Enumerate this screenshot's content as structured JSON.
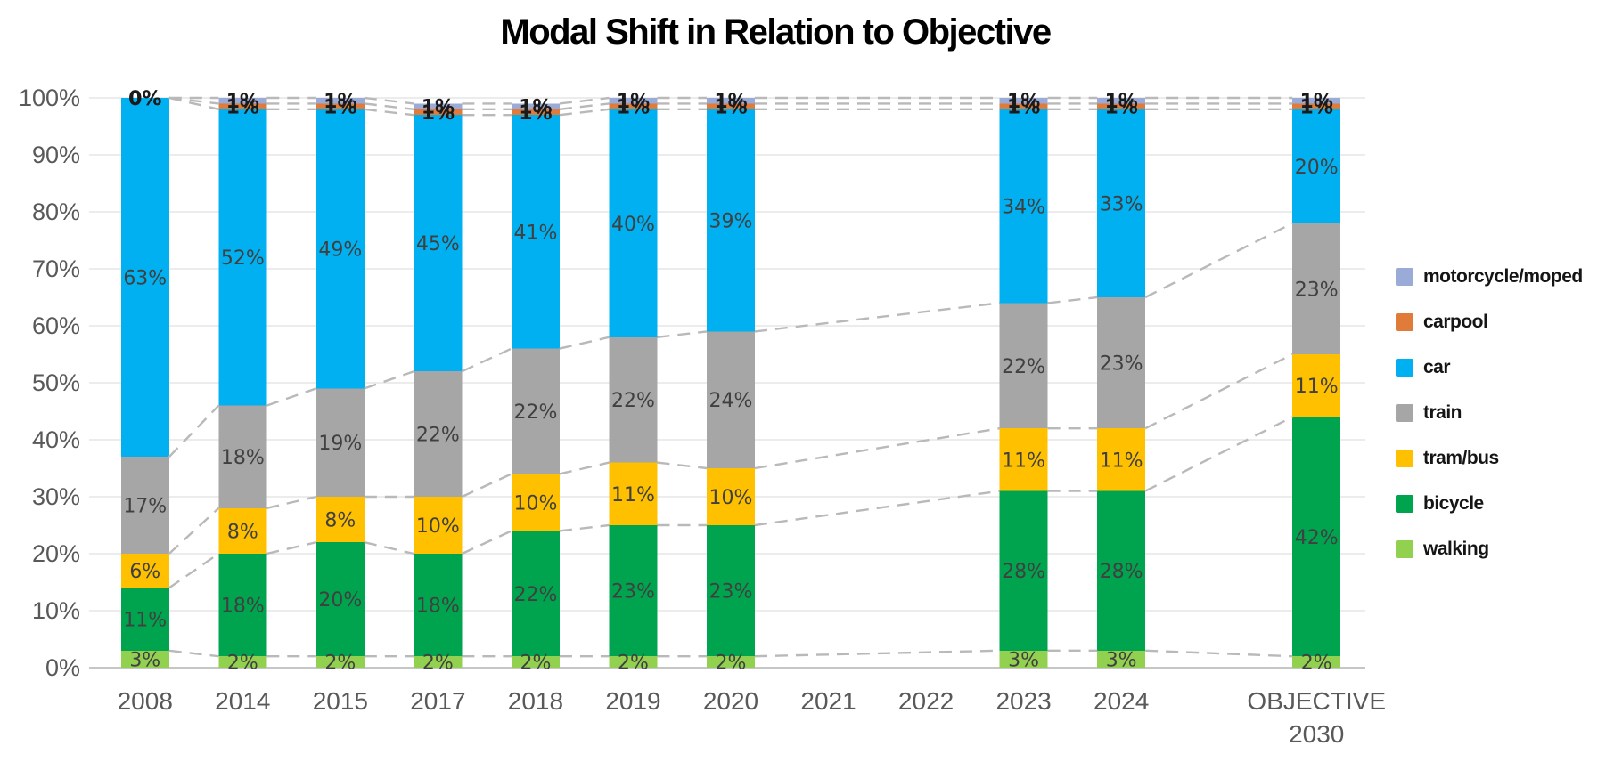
{
  "chart_data": {
    "type": "bar",
    "stacked": true,
    "title": "Modal Shift in Relation to Objective",
    "xlabel": "",
    "ylabel": "",
    "ylim": [
      0,
      100
    ],
    "grid": true,
    "legend_position": "right",
    "ytick_labels": [
      "0%",
      "10%",
      "20%",
      "30%",
      "40%",
      "50%",
      "60%",
      "70%",
      "80%",
      "90%",
      "100%"
    ],
    "categories": [
      "2008",
      "2014",
      "2015",
      "2017",
      "2018",
      "2019",
      "2020",
      "2021",
      "2022",
      "2023",
      "2024",
      "",
      "OBJECTIVE\n2030"
    ],
    "empty_categories": [
      "2021",
      "2022",
      ""
    ],
    "series_bottom_to_top": [
      {
        "name": "walking",
        "color": "#92D050",
        "label_color": "#404040",
        "label_bold": false,
        "values": [
          3,
          2,
          2,
          2,
          2,
          2,
          2,
          null,
          null,
          3,
          3,
          null,
          2
        ]
      },
      {
        "name": "bicycle",
        "color": "#00A44E",
        "label_color": "#404040",
        "label_bold": false,
        "values": [
          11,
          18,
          20,
          18,
          22,
          23,
          23,
          null,
          null,
          28,
          28,
          null,
          42
        ]
      },
      {
        "name": "tram/bus",
        "color": "#FFC000",
        "label_color": "#404040",
        "label_bold": false,
        "values": [
          6,
          8,
          8,
          10,
          10,
          11,
          10,
          null,
          null,
          11,
          11,
          null,
          11
        ]
      },
      {
        "name": "train",
        "color": "#A6A6A6",
        "label_color": "#404040",
        "label_bold": false,
        "values": [
          17,
          18,
          19,
          22,
          22,
          22,
          24,
          null,
          null,
          22,
          23,
          null,
          23
        ]
      },
      {
        "name": "car",
        "color": "#00B0F0",
        "label_color": "#404040",
        "label_bold": false,
        "values": [
          63,
          52,
          49,
          45,
          41,
          40,
          39,
          null,
          null,
          34,
          33,
          null,
          20
        ]
      },
      {
        "name": "carpool",
        "color": "#E07B39",
        "label_color": "#1A1A1A",
        "label_bold": true,
        "values": [
          0,
          1,
          1,
          1,
          1,
          1,
          1,
          null,
          null,
          1,
          1,
          null,
          1
        ]
      },
      {
        "name": "motorcycle/moped",
        "color": "#99ABD6",
        "label_color": "#1A1A1A",
        "label_bold": true,
        "values": [
          0,
          1,
          1,
          1,
          1,
          1,
          1,
          null,
          null,
          1,
          1,
          null,
          1
        ]
      }
    ],
    "legend_top_to_bottom": [
      "motorcycle/moped",
      "carpool",
      "car",
      "train",
      "tram/bus",
      "bicycle",
      "walking"
    ],
    "connector_lines": {
      "style": "dashed",
      "color": "#B9B9B9"
    },
    "gridline_color": "#D9D9D9",
    "axis_line_color": "#C6C6C6",
    "axis_label_color": "#595959"
  }
}
